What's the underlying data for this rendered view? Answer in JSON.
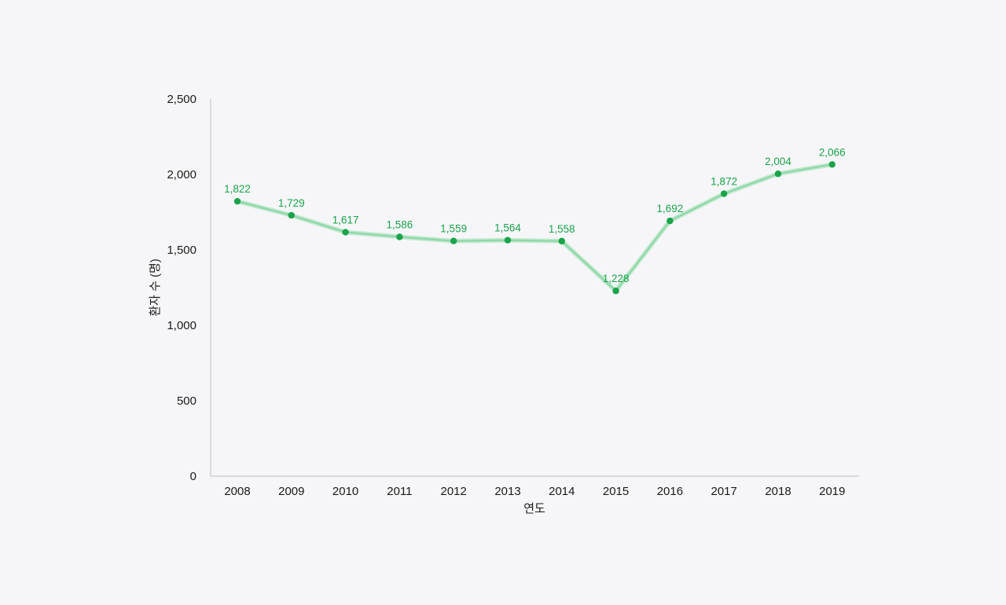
{
  "chart_data": {
    "type": "line",
    "title": "",
    "xlabel": "연도",
    "ylabel": "환자 수 (명)",
    "categories": [
      "2008",
      "2009",
      "2010",
      "2011",
      "2012",
      "2013",
      "2014",
      "2015",
      "2016",
      "2017",
      "2018",
      "2019"
    ],
    "series": [
      {
        "values": [
          1822,
          1729,
          1617,
          1586,
          1559,
          1564,
          1558,
          1228,
          1692,
          1872,
          2004,
          2066
        ],
        "labels": [
          "1,822",
          "1,729",
          "1,617",
          "1,586",
          "1,559",
          "1,564",
          "1,558",
          "1,228",
          "1,692",
          "1,872",
          "2,004",
          "2,066"
        ]
      }
    ],
    "ylim": [
      0,
      2500
    ],
    "yticks": [
      0,
      500,
      1000,
      1500,
      2000,
      2500
    ],
    "yticklabels": [
      "0",
      "500",
      "1,000",
      "1,500",
      "2,000",
      "2,500"
    ],
    "grid": false,
    "legend": "none",
    "colors": {
      "line": "#8fd9a8",
      "marker": "#1aa34a",
      "label": "#1aa34a",
      "axis": "#c8c8c8"
    }
  }
}
